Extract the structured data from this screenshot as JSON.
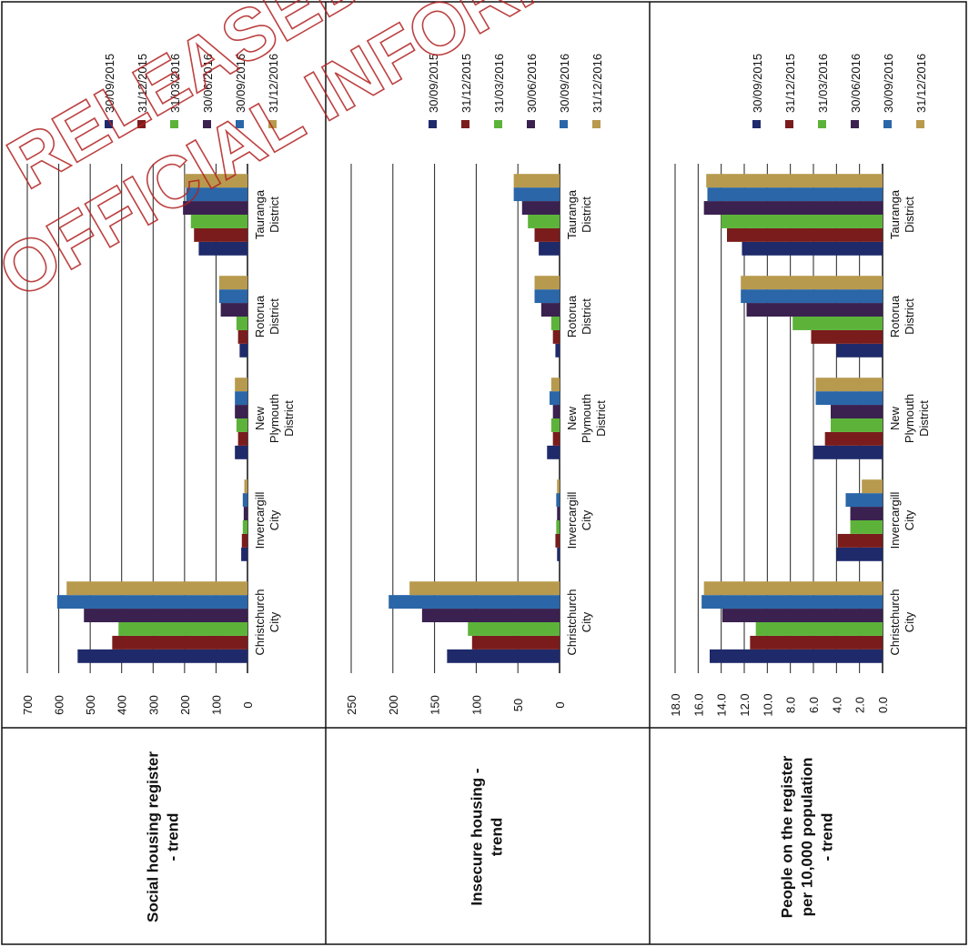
{
  "watermark": {
    "line1": "RELEASED",
    "line2": "OFFICIAL INFORMATION",
    "color": "#b22222"
  },
  "colors": {
    "30/09/2015": "#1f2a6b",
    "31/12/2015": "#7a1c1c",
    "31/03/2016": "#5db33a",
    "30/06/2016": "#3a2150",
    "30/09/2016": "#2a66a8",
    "31/12/2016": "#b89a4e"
  },
  "rows": [
    {
      "title_lines": [
        "Social housing register",
        "- trend"
      ]
    },
    {
      "title_lines": [
        "Insecure housing -",
        "trend"
      ]
    },
    {
      "title_lines": [
        "People on the register",
        "per 10,000 population",
        "- trend"
      ]
    }
  ],
  "chart_data": [
    {
      "type": "bar",
      "title": "",
      "categories": [
        [
          "Christchurch",
          "City"
        ],
        [
          "Invercargill",
          "City"
        ],
        [
          "New",
          "Plymouth",
          "District"
        ],
        [
          "Rotorua",
          "District"
        ],
        [
          "Tauranga",
          "District"
        ]
      ],
      "yticks": [
        "0",
        "100",
        "200",
        "300",
        "400",
        "500",
        "600",
        "700"
      ],
      "ylim": [
        0,
        700
      ],
      "grid": true,
      "legend": "right",
      "series": [
        {
          "name": "30/09/2015",
          "values": [
            540,
            20,
            40,
            25,
            155
          ]
        },
        {
          "name": "31/12/2015",
          "values": [
            430,
            18,
            30,
            30,
            170
          ]
        },
        {
          "name": "31/03/2016",
          "values": [
            410,
            15,
            35,
            35,
            180
          ]
        },
        {
          "name": "30/06/2016",
          "values": [
            520,
            12,
            40,
            85,
            205
          ]
        },
        {
          "name": "30/09/2016",
          "values": [
            605,
            15,
            40,
            90,
            195
          ]
        },
        {
          "name": "31/12/2016",
          "values": [
            575,
            10,
            40,
            90,
            200
          ]
        }
      ]
    },
    {
      "type": "bar",
      "title": "",
      "categories": [
        [
          "Christchurch",
          "City"
        ],
        [
          "Invercargill",
          "City"
        ],
        [
          "New",
          "Plymouth",
          "District"
        ],
        [
          "Rotorua",
          "District"
        ],
        [
          "Tauranga",
          "District"
        ]
      ],
      "yticks": [
        "0",
        "50",
        "100",
        "150",
        "200",
        "250"
      ],
      "ylim": [
        0,
        250
      ],
      "grid": true,
      "legend": "right",
      "series": [
        {
          "name": "30/09/2015",
          "values": [
            135,
            3,
            15,
            5,
            25
          ]
        },
        {
          "name": "31/12/2015",
          "values": [
            105,
            5,
            8,
            8,
            30
          ]
        },
        {
          "name": "31/03/2016",
          "values": [
            110,
            4,
            10,
            10,
            38
          ]
        },
        {
          "name": "30/06/2016",
          "values": [
            165,
            3,
            8,
            22,
            45
          ]
        },
        {
          "name": "30/09/2016",
          "values": [
            205,
            4,
            12,
            30,
            55
          ]
        },
        {
          "name": "31/12/2016",
          "values": [
            180,
            3,
            10,
            30,
            55
          ]
        }
      ]
    },
    {
      "type": "bar",
      "title": "",
      "categories": [
        [
          "Christchurch",
          "City"
        ],
        [
          "Invercargill",
          "City"
        ],
        [
          "New",
          "Plymouth",
          "District"
        ],
        [
          "Rotorua",
          "District"
        ],
        [
          "Tauranga",
          "District"
        ]
      ],
      "yticks": [
        "0.0",
        "2.0",
        "4.0",
        "6.0",
        "8.0",
        "10.0",
        "12.0",
        "14.0",
        "16.0",
        "18.0"
      ],
      "ylim": [
        0,
        18
      ],
      "grid": true,
      "legend": "right",
      "series": [
        {
          "name": "30/09/2015",
          "values": [
            15.0,
            4.0,
            6.0,
            4.0,
            12.2
          ]
        },
        {
          "name": "31/12/2015",
          "values": [
            11.5,
            3.9,
            5.0,
            6.2,
            13.5
          ]
        },
        {
          "name": "31/03/2016",
          "values": [
            11.0,
            2.8,
            4.5,
            7.8,
            14.0
          ]
        },
        {
          "name": "30/06/2016",
          "values": [
            13.9,
            2.8,
            4.5,
            11.8,
            15.5
          ]
        },
        {
          "name": "30/09/2016",
          "values": [
            15.7,
            3.2,
            5.8,
            12.3,
            15.2
          ]
        },
        {
          "name": "31/12/2016",
          "values": [
            15.5,
            1.8,
            5.8,
            12.3,
            15.3
          ]
        }
      ]
    }
  ]
}
